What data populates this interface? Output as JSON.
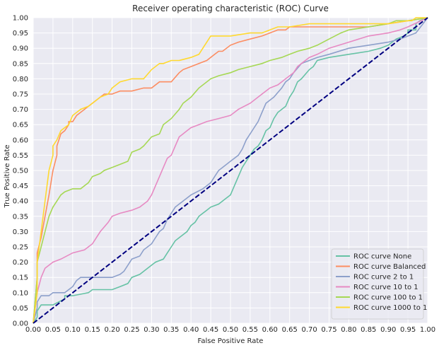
{
  "chart_data": {
    "type": "line",
    "title": "Receiver operating characteristic (ROC) Curve",
    "xlabel": "False Positive Rate",
    "ylabel": "True Positive Rate",
    "xlim": [
      0,
      1
    ],
    "ylim": [
      0,
      1
    ],
    "xticks": [
      "0.00",
      "0.05",
      "0.10",
      "0.15",
      "0.20",
      "0.25",
      "0.30",
      "0.35",
      "0.40",
      "0.45",
      "0.50",
      "0.55",
      "0.60",
      "0.65",
      "0.70",
      "0.75",
      "0.80",
      "0.85",
      "0.90",
      "0.95",
      "1.00"
    ],
    "yticks": [
      "0.00",
      "0.05",
      "0.10",
      "0.15",
      "0.20",
      "0.25",
      "0.30",
      "0.35",
      "0.40",
      "0.45",
      "0.50",
      "0.55",
      "0.60",
      "0.65",
      "0.70",
      "0.75",
      "0.80",
      "0.85",
      "0.90",
      "0.95",
      "1.00"
    ],
    "grid": true,
    "legend_position": "lower-right",
    "background_color": "#eaeaf2",
    "grid_color": "#ffffff",
    "reference_line": {
      "x": [
        0,
        1
      ],
      "y": [
        0,
        1
      ],
      "color": "#000080",
      "style": "dashed"
    },
    "series": [
      {
        "name": "ROC curve None",
        "color": "#66c2a5",
        "x": [
          0,
          0.01,
          0.01,
          0.02,
          0.02,
          0.05,
          0.08,
          0.08,
          0.1,
          0.14,
          0.15,
          0.2,
          0.22,
          0.24,
          0.25,
          0.27,
          0.28,
          0.3,
          0.31,
          0.33,
          0.34,
          0.35,
          0.36,
          0.37,
          0.38,
          0.39,
          0.4,
          0.41,
          0.42,
          0.43,
          0.44,
          0.45,
          0.47,
          0.48,
          0.49,
          0.5,
          0.51,
          0.52,
          0.53,
          0.54,
          0.55,
          0.56,
          0.57,
          0.58,
          0.59,
          0.6,
          0.61,
          0.62,
          0.63,
          0.64,
          0.65,
          0.66,
          0.67,
          0.68,
          0.7,
          0.71,
          0.72,
          0.75,
          0.8,
          0.85,
          0.88,
          0.9,
          0.92,
          0.94,
          0.95,
          0.95,
          0.97,
          0.97,
          0.98,
          1.0
        ],
        "y": [
          0,
          0.02,
          0.04,
          0.06,
          0.06,
          0.06,
          0.08,
          0.09,
          0.09,
          0.1,
          0.11,
          0.11,
          0.12,
          0.13,
          0.15,
          0.16,
          0.17,
          0.19,
          0.2,
          0.21,
          0.23,
          0.25,
          0.27,
          0.28,
          0.29,
          0.3,
          0.32,
          0.33,
          0.35,
          0.36,
          0.37,
          0.38,
          0.39,
          0.4,
          0.41,
          0.42,
          0.45,
          0.48,
          0.51,
          0.53,
          0.55,
          0.57,
          0.58,
          0.6,
          0.63,
          0.64,
          0.67,
          0.69,
          0.7,
          0.71,
          0.74,
          0.76,
          0.79,
          0.8,
          0.83,
          0.84,
          0.86,
          0.87,
          0.88,
          0.89,
          0.9,
          0.91,
          0.93,
          0.94,
          0.95,
          0.96,
          0.96,
          0.98,
          0.99,
          1.0
        ]
      },
      {
        "name": "ROC curve Balanced",
        "color": "#fc8d62",
        "x": [
          0,
          0.01,
          0.01,
          0.02,
          0.03,
          0.04,
          0.05,
          0.06,
          0.06,
          0.07,
          0.08,
          0.09,
          0.09,
          0.1,
          0.11,
          0.12,
          0.13,
          0.14,
          0.16,
          0.17,
          0.18,
          0.2,
          0.22,
          0.25,
          0.28,
          0.3,
          0.32,
          0.35,
          0.37,
          0.38,
          0.4,
          0.42,
          0.44,
          0.46,
          0.47,
          0.48,
          0.5,
          0.52,
          0.55,
          0.58,
          0.6,
          0.62,
          0.64,
          0.65,
          0.68,
          0.7,
          0.72,
          0.75,
          0.8,
          0.85,
          0.9,
          0.95,
          1.0
        ],
        "y": [
          0,
          0.15,
          0.23,
          0.28,
          0.35,
          0.42,
          0.5,
          0.55,
          0.58,
          0.62,
          0.63,
          0.65,
          0.66,
          0.66,
          0.68,
          0.69,
          0.7,
          0.71,
          0.73,
          0.74,
          0.75,
          0.75,
          0.76,
          0.76,
          0.77,
          0.77,
          0.79,
          0.79,
          0.82,
          0.83,
          0.84,
          0.85,
          0.86,
          0.88,
          0.89,
          0.89,
          0.91,
          0.92,
          0.93,
          0.94,
          0.95,
          0.96,
          0.96,
          0.97,
          0.97,
          0.97,
          0.97,
          0.97,
          0.97,
          0.97,
          0.98,
          0.99,
          1.0
        ]
      },
      {
        "name": "ROC curve 2 to 1",
        "color": "#8da0cb",
        "x": [
          0,
          0.01,
          0.01,
          0.02,
          0.04,
          0.05,
          0.06,
          0.08,
          0.1,
          0.11,
          0.12,
          0.14,
          0.17,
          0.2,
          0.22,
          0.23,
          0.24,
          0.25,
          0.27,
          0.28,
          0.3,
          0.31,
          0.32,
          0.33,
          0.34,
          0.35,
          0.36,
          0.38,
          0.4,
          0.43,
          0.44,
          0.45,
          0.46,
          0.47,
          0.48,
          0.5,
          0.52,
          0.53,
          0.54,
          0.55,
          0.56,
          0.57,
          0.58,
          0.59,
          0.6,
          0.61,
          0.63,
          0.64,
          0.65,
          0.66,
          0.68,
          0.7,
          0.72,
          0.75,
          0.8,
          0.85,
          0.9,
          0.93,
          0.95,
          0.97,
          1.0
        ],
        "y": [
          0,
          0.05,
          0.07,
          0.09,
          0.09,
          0.1,
          0.1,
          0.1,
          0.12,
          0.14,
          0.15,
          0.15,
          0.15,
          0.15,
          0.16,
          0.17,
          0.19,
          0.21,
          0.22,
          0.24,
          0.26,
          0.28,
          0.3,
          0.31,
          0.34,
          0.36,
          0.38,
          0.4,
          0.42,
          0.44,
          0.45,
          0.46,
          0.48,
          0.5,
          0.51,
          0.53,
          0.55,
          0.57,
          0.6,
          0.62,
          0.64,
          0.66,
          0.69,
          0.72,
          0.73,
          0.74,
          0.77,
          0.79,
          0.8,
          0.82,
          0.85,
          0.86,
          0.87,
          0.88,
          0.9,
          0.91,
          0.92,
          0.93,
          0.94,
          0.95,
          1.0
        ]
      },
      {
        "name": "ROC curve 10 to 1",
        "color": "#e78ac3",
        "x": [
          0,
          0.01,
          0.02,
          0.03,
          0.05,
          0.07,
          0.1,
          0.13,
          0.15,
          0.17,
          0.19,
          0.2,
          0.22,
          0.25,
          0.27,
          0.29,
          0.3,
          0.31,
          0.32,
          0.33,
          0.34,
          0.35,
          0.36,
          0.37,
          0.38,
          0.39,
          0.4,
          0.42,
          0.44,
          0.47,
          0.5,
          0.52,
          0.55,
          0.57,
          0.58,
          0.6,
          0.62,
          0.63,
          0.64,
          0.65,
          0.66,
          0.67,
          0.68,
          0.7,
          0.72,
          0.75,
          0.8,
          0.85,
          0.9,
          0.93,
          0.95,
          1.0
        ],
        "y": [
          0,
          0.1,
          0.15,
          0.18,
          0.2,
          0.21,
          0.23,
          0.24,
          0.26,
          0.3,
          0.33,
          0.35,
          0.36,
          0.37,
          0.38,
          0.4,
          0.42,
          0.45,
          0.48,
          0.51,
          0.54,
          0.55,
          0.58,
          0.61,
          0.62,
          0.63,
          0.64,
          0.65,
          0.66,
          0.67,
          0.68,
          0.7,
          0.72,
          0.74,
          0.75,
          0.77,
          0.78,
          0.79,
          0.8,
          0.81,
          0.82,
          0.84,
          0.85,
          0.87,
          0.88,
          0.9,
          0.92,
          0.94,
          0.95,
          0.96,
          0.97,
          1.0
        ]
      },
      {
        "name": "ROC curve 100 to 1",
        "color": "#a6d854",
        "x": [
          0,
          0.01,
          0.01,
          0.02,
          0.03,
          0.04,
          0.05,
          0.06,
          0.07,
          0.08,
          0.1,
          0.12,
          0.13,
          0.14,
          0.15,
          0.17,
          0.18,
          0.2,
          0.22,
          0.24,
          0.25,
          0.27,
          0.28,
          0.3,
          0.32,
          0.33,
          0.35,
          0.37,
          0.38,
          0.4,
          0.42,
          0.45,
          0.47,
          0.5,
          0.52,
          0.55,
          0.58,
          0.6,
          0.63,
          0.65,
          0.67,
          0.7,
          0.72,
          0.75,
          0.78,
          0.8,
          0.85,
          0.9,
          0.92,
          0.95,
          1.0
        ],
        "y": [
          0,
          0.15,
          0.2,
          0.25,
          0.3,
          0.35,
          0.38,
          0.4,
          0.42,
          0.43,
          0.44,
          0.44,
          0.45,
          0.46,
          0.48,
          0.49,
          0.5,
          0.51,
          0.52,
          0.53,
          0.56,
          0.57,
          0.58,
          0.61,
          0.62,
          0.65,
          0.67,
          0.7,
          0.72,
          0.74,
          0.77,
          0.8,
          0.81,
          0.82,
          0.83,
          0.84,
          0.85,
          0.86,
          0.87,
          0.88,
          0.89,
          0.9,
          0.91,
          0.93,
          0.95,
          0.96,
          0.97,
          0.98,
          0.99,
          0.99,
          1.0
        ]
      },
      {
        "name": "ROC curve 1000 to 1",
        "color": "#ffd92f",
        "x": [
          0,
          0.01,
          0.01,
          0.02,
          0.03,
          0.04,
          0.05,
          0.05,
          0.06,
          0.07,
          0.08,
          0.09,
          0.1,
          0.12,
          0.14,
          0.15,
          0.17,
          0.19,
          0.2,
          0.22,
          0.25,
          0.28,
          0.3,
          0.32,
          0.33,
          0.35,
          0.37,
          0.4,
          0.42,
          0.43,
          0.44,
          0.45,
          0.48,
          0.5,
          0.55,
          0.58,
          0.6,
          0.62,
          0.65,
          0.7,
          0.75,
          0.8,
          0.85,
          0.9,
          0.95,
          0.96,
          0.97,
          0.98,
          1.0
        ],
        "y": [
          0,
          0.1,
          0.2,
          0.3,
          0.4,
          0.5,
          0.55,
          0.58,
          0.6,
          0.63,
          0.64,
          0.65,
          0.68,
          0.7,
          0.71,
          0.72,
          0.74,
          0.75,
          0.77,
          0.79,
          0.8,
          0.8,
          0.83,
          0.85,
          0.85,
          0.86,
          0.86,
          0.87,
          0.88,
          0.9,
          0.92,
          0.94,
          0.94,
          0.94,
          0.95,
          0.95,
          0.96,
          0.97,
          0.97,
          0.98,
          0.98,
          0.98,
          0.98,
          0.98,
          0.99,
          0.99,
          1.0,
          1.0,
          1.0
        ]
      }
    ]
  }
}
